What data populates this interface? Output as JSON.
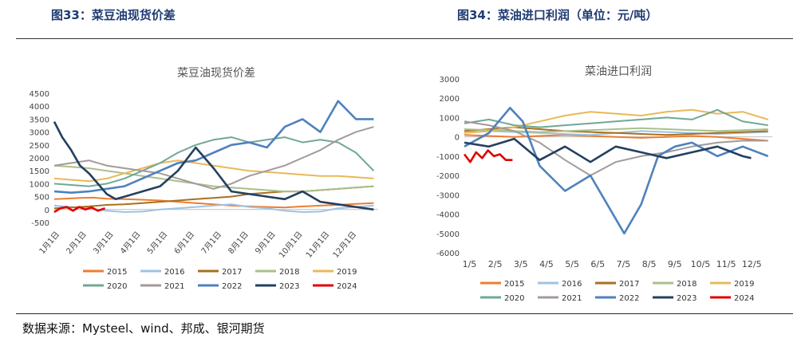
{
  "header": {
    "left_title": "图33：菜豆油现货价差",
    "right_title": "图34：菜油进口利润（单位：元/吨）"
  },
  "source": "数据来源：Mysteel、wind、邦成、银河期货",
  "colors": {
    "2015": "#ed7d31",
    "2016": "#9dc3e6",
    "2017": "#a9701f",
    "2018": "#a9c08a",
    "2019": "#e8b95a",
    "2020": "#6fa896",
    "2021": "#a39a9a",
    "2022": "#4f81bd",
    "2023": "#243f60",
    "2024": "#e00000"
  },
  "chart_data": [
    {
      "type": "line",
      "title": "菜豆油现货价差",
      "xlabel": "",
      "ylabel": "",
      "ylim": [
        -500,
        4500
      ],
      "yticks": [
        "4500",
        "4000",
        "3500",
        "3000",
        "2500",
        "2000",
        "1500",
        "1000",
        "500",
        "0",
        "-500"
      ],
      "x_tick_labels": [
        "1月1日",
        "2月1日",
        "3月1日",
        "4月1日",
        "5月1日",
        "6月1日",
        "7月1日",
        "8月1日",
        "9月1日",
        "10月1日",
        "11月1日",
        "12月1日"
      ],
      "legend_placement": "bottom",
      "series": [
        {
          "name": "2015",
          "x": [
            1,
            12,
            30,
            45,
            60,
            80,
            100,
            120,
            140,
            160,
            180,
            200,
            220,
            240,
            260,
            280,
            300,
            320,
            340,
            360
          ],
          "values": [
            400,
            420,
            450,
            460,
            420,
            400,
            380,
            350,
            300,
            250,
            200,
            150,
            120,
            100,
            80,
            120,
            150,
            180,
            220,
            250
          ]
        },
        {
          "name": "2016",
          "x": [
            1,
            20,
            40,
            60,
            80,
            100,
            120,
            140,
            160,
            180,
            200,
            220,
            240,
            260,
            280,
            300,
            320,
            340,
            360
          ],
          "values": [
            150,
            100,
            50,
            -50,
            -100,
            -80,
            0,
            50,
            100,
            150,
            200,
            100,
            50,
            -50,
            -100,
            -80,
            50,
            100,
            150
          ]
        },
        {
          "name": "2017",
          "x": [
            1,
            20,
            40,
            60,
            80,
            100,
            120,
            140,
            160,
            180,
            200,
            220,
            240,
            260,
            280,
            300,
            320,
            340,
            360
          ],
          "values": [
            50,
            80,
            120,
            180,
            200,
            250,
            300,
            350,
            400,
            450,
            500,
            600,
            650,
            700,
            700,
            750,
            800,
            850,
            900
          ]
        },
        {
          "name": "2018",
          "x": [
            1,
            20,
            40,
            60,
            80,
            100,
            120,
            140,
            160,
            180,
            200,
            220,
            240,
            260,
            280,
            300,
            320,
            340,
            360
          ],
          "values": [
            1700,
            1650,
            1600,
            1500,
            1400,
            1300,
            1200,
            1100,
            1000,
            900,
            850,
            800,
            750,
            700,
            700,
            750,
            800,
            850,
            900
          ]
        },
        {
          "name": "2019",
          "x": [
            1,
            20,
            40,
            60,
            80,
            100,
            120,
            140,
            160,
            180,
            200,
            220,
            240,
            260,
            280,
            300,
            320,
            340,
            360
          ],
          "values": [
            1200,
            1150,
            1100,
            1200,
            1400,
            1600,
            1800,
            1900,
            1800,
            1700,
            1600,
            1500,
            1450,
            1400,
            1350,
            1300,
            1300,
            1250,
            1200
          ]
        },
        {
          "name": "2020",
          "x": [
            1,
            20,
            40,
            60,
            80,
            100,
            120,
            140,
            160,
            180,
            200,
            220,
            240,
            260,
            280,
            300,
            320,
            340,
            360
          ],
          "values": [
            1000,
            950,
            900,
            1000,
            1200,
            1500,
            1800,
            2200,
            2500,
            2700,
            2800,
            2600,
            2700,
            2800,
            2600,
            2700,
            2600,
            2200,
            1500
          ]
        },
        {
          "name": "2021",
          "x": [
            1,
            20,
            40,
            60,
            80,
            100,
            120,
            140,
            160,
            180,
            200,
            220,
            240,
            260,
            280,
            300,
            320,
            340,
            360
          ],
          "values": [
            1700,
            1800,
            1900,
            1700,
            1600,
            1500,
            1400,
            1200,
            1000,
            800,
            1000,
            1300,
            1500,
            1700,
            2000,
            2300,
            2700,
            3000,
            3200
          ]
        },
        {
          "name": "2022",
          "x": [
            1,
            20,
            40,
            60,
            80,
            100,
            120,
            140,
            160,
            180,
            200,
            220,
            240,
            260,
            280,
            300,
            320,
            340,
            360
          ],
          "values": [
            700,
            650,
            700,
            800,
            900,
            1200,
            1500,
            1800,
            1900,
            2200,
            2500,
            2600,
            2400,
            3200,
            3500,
            3000,
            4200,
            3500,
            3500
          ]
        },
        {
          "name": "2023",
          "x": [
            1,
            10,
            20,
            30,
            40,
            50,
            60,
            70,
            80,
            100,
            120,
            140,
            160,
            180,
            200,
            220,
            240,
            260,
            280,
            300,
            320,
            340,
            360
          ],
          "values": [
            3400,
            2800,
            2300,
            1700,
            1400,
            1000,
            600,
            400,
            500,
            700,
            900,
            1500,
            2400,
            1600,
            700,
            600,
            500,
            400,
            700,
            300,
            200,
            100,
            0
          ]
        },
        {
          "name": "2024",
          "x": [
            1,
            8,
            15,
            22,
            29,
            36,
            43,
            50,
            58
          ],
          "values": [
            -100,
            50,
            100,
            -50,
            100,
            0,
            80,
            -50,
            50
          ]
        }
      ]
    },
    {
      "type": "line",
      "title": "菜油进口利润",
      "xlabel": "",
      "ylabel": "",
      "ylim": [
        -6000,
        3000
      ],
      "yticks": [
        "3000",
        "2000",
        "1000",
        "0",
        "-1000",
        "-2000",
        "-3000",
        "-4000",
        "-5000",
        "-6000"
      ],
      "x_tick_labels": [
        "1/5",
        "2/5",
        "3/5",
        "4/5",
        "5/5",
        "6/5",
        "7/5",
        "8/5",
        "9/5",
        "10/5",
        "11/5",
        "12/5"
      ],
      "legend_placement": "bottom",
      "series": [
        {
          "name": "2015",
          "x": [
            1,
            30,
            60,
            90,
            120,
            150,
            180,
            210,
            240,
            270,
            300,
            330,
            360
          ],
          "values": [
            100,
            50,
            0,
            50,
            100,
            50,
            0,
            -50,
            0,
            50,
            0,
            -100,
            -200
          ]
        },
        {
          "name": "2016",
          "x": [
            1,
            30,
            60,
            90,
            120,
            150,
            180,
            210,
            240,
            270,
            300,
            330,
            360
          ],
          "values": [
            200,
            300,
            250,
            200,
            150,
            100,
            200,
            300,
            250,
            200,
            150,
            200,
            250
          ]
        },
        {
          "name": "2017",
          "x": [
            1,
            30,
            60,
            90,
            120,
            150,
            180,
            210,
            240,
            270,
            300,
            330,
            360
          ],
          "values": [
            300,
            400,
            500,
            400,
            300,
            250,
            200,
            150,
            100,
            150,
            200,
            250,
            300
          ]
        },
        {
          "name": "2018",
          "x": [
            1,
            30,
            60,
            90,
            120,
            150,
            180,
            210,
            240,
            270,
            300,
            330,
            360
          ],
          "values": [
            400,
            350,
            300,
            250,
            300,
            350,
            400,
            450,
            400,
            350,
            300,
            350,
            400
          ]
        },
        {
          "name": "2019",
          "x": [
            1,
            30,
            60,
            90,
            120,
            150,
            180,
            210,
            240,
            270,
            300,
            330,
            360
          ],
          "values": [
            200,
            300,
            500,
            800,
            1100,
            1300,
            1200,
            1100,
            1300,
            1400,
            1200,
            1300,
            900
          ]
        },
        {
          "name": "2020",
          "x": [
            1,
            30,
            60,
            90,
            120,
            150,
            180,
            210,
            240,
            270,
            300,
            330,
            360
          ],
          "values": [
            700,
            900,
            600,
            500,
            600,
            700,
            800,
            900,
            1000,
            900,
            1400,
            800,
            600
          ]
        },
        {
          "name": "2021",
          "x": [
            1,
            30,
            60,
            90,
            120,
            150,
            180,
            210,
            240,
            270,
            300,
            330,
            360
          ],
          "values": [
            800,
            600,
            300,
            -300,
            -1200,
            -2000,
            -1300,
            -1000,
            -800,
            -500,
            -300,
            -200,
            -200
          ]
        },
        {
          "name": "2022",
          "x": [
            1,
            30,
            55,
            70,
            90,
            120,
            150,
            170,
            190,
            210,
            230,
            250,
            270,
            300,
            330,
            360
          ],
          "values": [
            -500,
            200,
            1500,
            800,
            -1500,
            -2800,
            -2000,
            -3500,
            -5000,
            -3500,
            -1000,
            -500,
            -300,
            -1000,
            -500,
            -1000
          ]
        },
        {
          "name": "2023",
          "x": [
            1,
            30,
            60,
            90,
            120,
            150,
            180,
            210,
            240,
            270,
            300,
            330,
            340
          ],
          "values": [
            -300,
            -500,
            -100,
            -1200,
            -500,
            -1300,
            -500,
            -800,
            -1100,
            -800,
            -500,
            -1000,
            -1100
          ]
        },
        {
          "name": "2024",
          "x": [
            1,
            8,
            15,
            22,
            29,
            36,
            43,
            50,
            58
          ],
          "values": [
            -900,
            -1300,
            -800,
            -1100,
            -700,
            -1000,
            -900,
            -1200,
            -1200
          ]
        }
      ]
    }
  ]
}
